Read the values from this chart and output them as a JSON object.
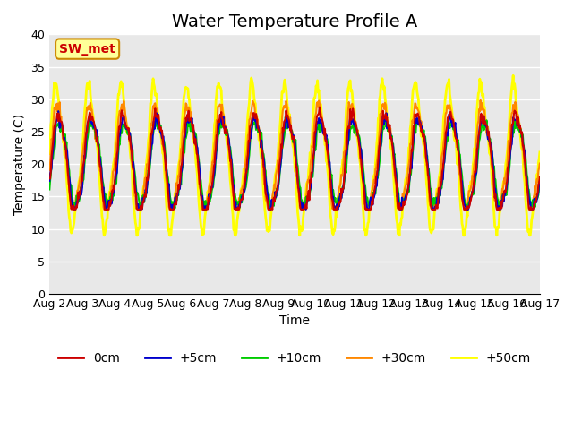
{
  "title": "Water Temperature Profile A",
  "xlabel": "Time",
  "ylabel": "Temperature (C)",
  "ylim": [
    0,
    40
  ],
  "yticks": [
    0,
    5,
    10,
    15,
    20,
    25,
    30,
    35,
    40
  ],
  "date_labels": [
    "Aug 2",
    "Aug 3",
    "Aug 4",
    "Aug 5",
    "Aug 6",
    "Aug 7",
    "Aug 8",
    "Aug 9",
    "Aug 10",
    "Aug 11",
    "Aug 12",
    "Aug 13",
    "Aug 14",
    "Aug 15",
    "Aug 16",
    "Aug 17"
  ],
  "series": {
    "0cm": {
      "color": "#cc0000",
      "lw": 1.5
    },
    "+5cm": {
      "color": "#0000cc",
      "lw": 1.5
    },
    "+10cm": {
      "color": "#00cc00",
      "lw": 1.5
    },
    "+30cm": {
      "color": "#ff8800",
      "lw": 1.5
    },
    "+50cm": {
      "color": "#ffff00",
      "lw": 2.0
    }
  },
  "legend_labels": [
    "0cm",
    "+5cm",
    "+10cm",
    "+30cm",
    "+50cm"
  ],
  "legend_colors": [
    "#cc0000",
    "#0000cc",
    "#00cc00",
    "#ff8800",
    "#ffff00"
  ],
  "annotation_text": "SW_met",
  "annotation_color": "#cc0000",
  "annotation_bg": "#ffff99",
  "annotation_border": "#cc8800",
  "bg_color": "#e8e8e8",
  "plot_bg": "#e8e8e8",
  "title_fontsize": 14,
  "axis_fontsize": 10,
  "tick_fontsize": 9
}
